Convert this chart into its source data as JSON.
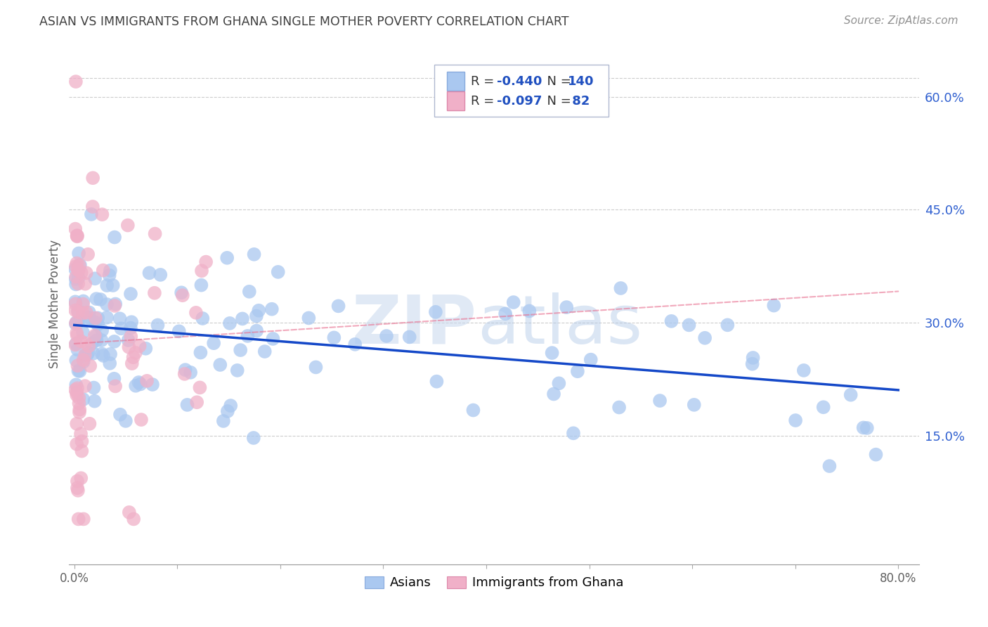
{
  "title": "ASIAN VS IMMIGRANTS FROM GHANA SINGLE MOTHER POVERTY CORRELATION CHART",
  "source": "Source: ZipAtlas.com",
  "ylabel": "Single Mother Poverty",
  "xlim": [
    -0.005,
    0.82
  ],
  "ylim": [
    -0.02,
    0.67
  ],
  "plot_xlim": [
    0.0,
    0.8
  ],
  "xticks": [
    0.0,
    0.1,
    0.2,
    0.3,
    0.4,
    0.5,
    0.6,
    0.7,
    0.8
  ],
  "xticklabels": [
    "0.0%",
    "",
    "",
    "",
    "",
    "",
    "",
    "",
    "80.0%"
  ],
  "yticks_right": [
    0.15,
    0.3,
    0.45,
    0.6
  ],
  "ytick_right_labels": [
    "15.0%",
    "30.0%",
    "45.0%",
    "60.0%"
  ],
  "watermark_zip": "ZIP",
  "watermark_atlas": "atlas",
  "asian_fill_color": "#aac8f0",
  "ghana_fill_color": "#f0b0c8",
  "asian_line_color": "#1448c8",
  "ghana_line_color": "#e87090",
  "background_color": "#ffffff",
  "grid_color": "#cccccc",
  "title_color": "#404040",
  "source_color": "#909090",
  "label_color": "#3060d0",
  "legend_label_color": "#2050c0",
  "asian_R": "-0.440",
  "asian_N": "140",
  "ghana_R": "-0.097",
  "ghana_N": " 82",
  "seed": 17
}
